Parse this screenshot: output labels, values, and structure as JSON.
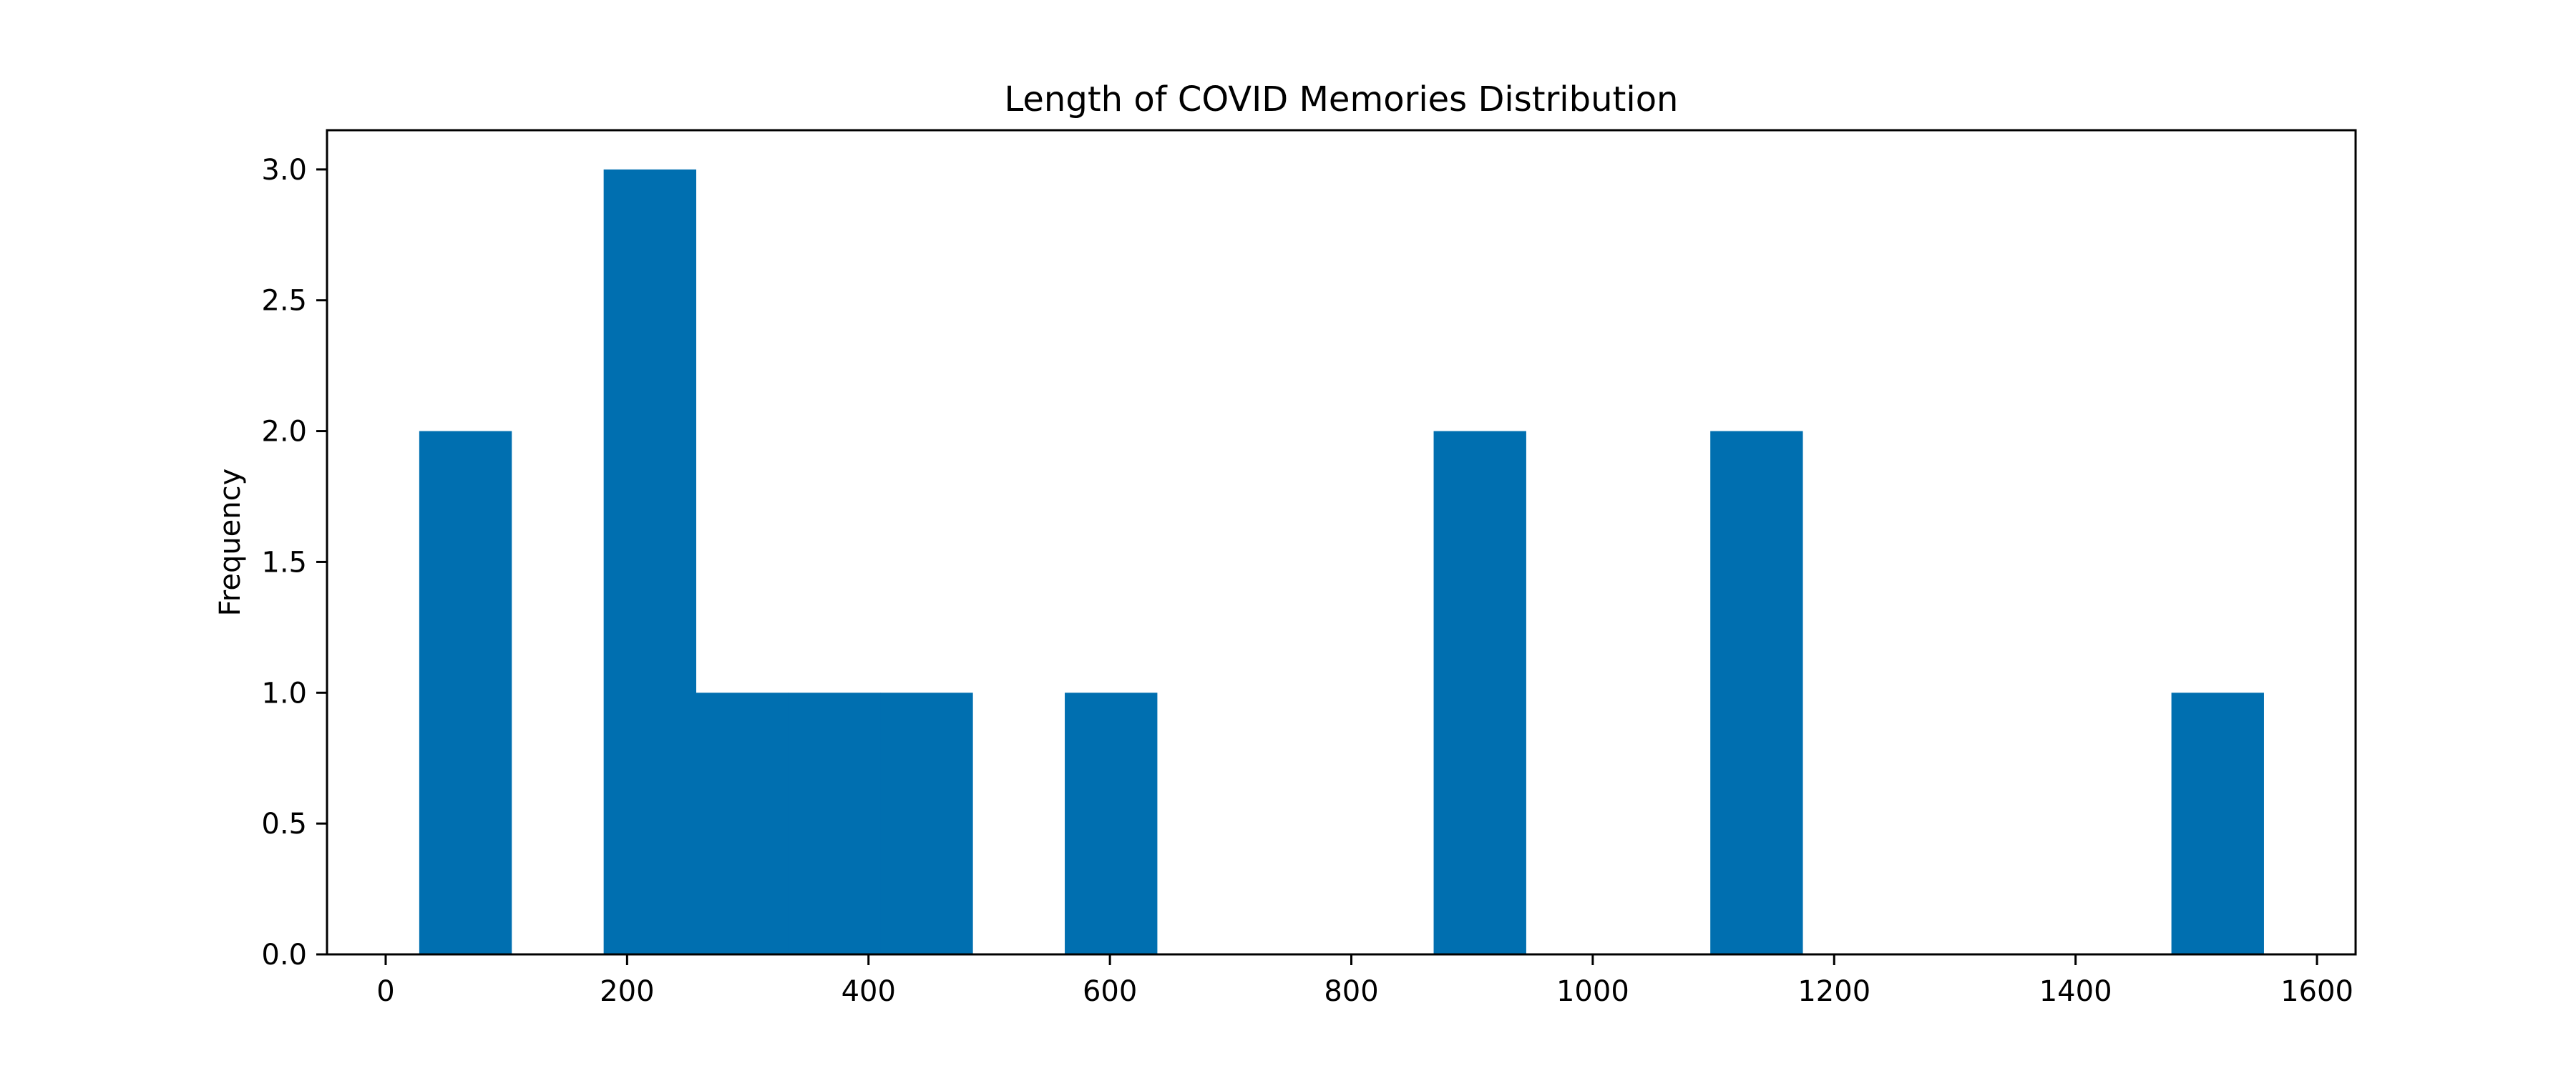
{
  "chart_data": {
    "type": "bar",
    "title": "Length of COVID Memories Distribution",
    "xlabel": "",
    "ylabel": "Frequency",
    "xlim": [
      -48.6,
      1632
    ],
    "ylim": [
      0,
      3.15
    ],
    "xticks": [
      0,
      200,
      400,
      600,
      800,
      1000,
      1200,
      1400,
      1600
    ],
    "yticks": [
      0.0,
      0.5,
      1.0,
      1.5,
      2.0,
      2.5,
      3.0
    ],
    "xtick_labels": [
      "0",
      "200",
      "400",
      "600",
      "800",
      "1000",
      "1200",
      "1400",
      "1600"
    ],
    "ytick_labels": [
      "0.0",
      "0.5",
      "1.0",
      "1.5",
      "2.0",
      "2.5",
      "3.0"
    ],
    "bin_width": 76.4,
    "bins": [
      {
        "start": 27.8,
        "count": 2
      },
      {
        "start": 104.2,
        "count": 0
      },
      {
        "start": 180.6,
        "count": 3
      },
      {
        "start": 257.0,
        "count": 1
      },
      {
        "start": 333.4,
        "count": 1
      },
      {
        "start": 409.8,
        "count": 1
      },
      {
        "start": 486.2,
        "count": 0
      },
      {
        "start": 562.6,
        "count": 1
      },
      {
        "start": 639.0,
        "count": 0
      },
      {
        "start": 715.4,
        "count": 0
      },
      {
        "start": 791.8,
        "count": 0
      },
      {
        "start": 868.2,
        "count": 2
      },
      {
        "start": 944.6,
        "count": 0
      },
      {
        "start": 1021.0,
        "count": 0
      },
      {
        "start": 1097.4,
        "count": 2
      },
      {
        "start": 1173.8,
        "count": 0
      },
      {
        "start": 1250.2,
        "count": 0
      },
      {
        "start": 1326.6,
        "count": 0
      },
      {
        "start": 1403.0,
        "count": 0
      },
      {
        "start": 1479.4,
        "count": 1
      }
    ],
    "bar_color": "#006fb0",
    "grid": false,
    "legend": "none"
  }
}
